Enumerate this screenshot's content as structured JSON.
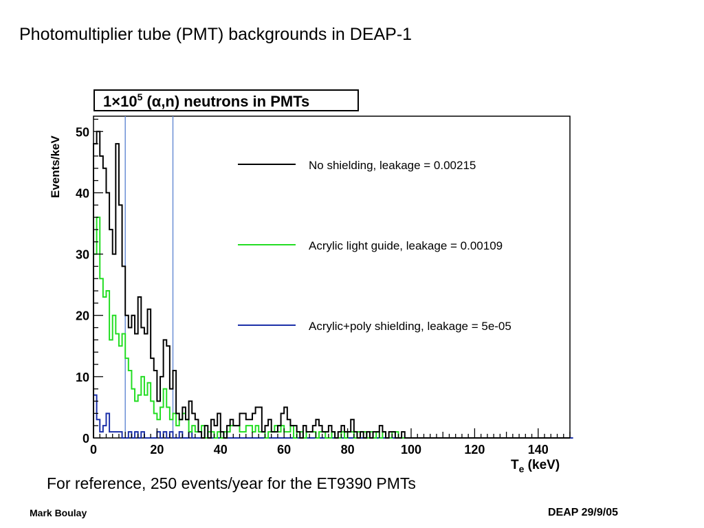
{
  "slide": {
    "title": "Photomultiplier tube (PMT) backgrounds in DEAP-1",
    "footnote": "For reference, 250 events/year for the ET9390 PMTs",
    "author": "Mark Boulay",
    "date": "DEAP 29/9/05"
  },
  "chart_data": {
    "type": "line",
    "title": "1×10^5 (α,n) neutrons in PMTs",
    "title_parts": {
      "mantissa": "1×10",
      "exponent": "5",
      "rest": " (α,n) neutrons in PMTs"
    },
    "xlabel": "T",
    "xlabel_parts": {
      "symbol": "T",
      "subscript": "e",
      "unit": " (keV)"
    },
    "ylabel": "Events/keV",
    "xlim": [
      0,
      150
    ],
    "ylim": [
      0,
      52.5
    ],
    "xticks": [
      0,
      20,
      40,
      60,
      80,
      100,
      120,
      140
    ],
    "yticks": [
      0,
      10,
      20,
      30,
      40,
      50
    ],
    "bin_width": 1,
    "cut_lines": [
      10,
      25
    ],
    "legend_position": "right",
    "series": [
      {
        "name": "No shielding, leakage = 0.00215",
        "color": "#000000",
        "values": [
          48,
          50,
          46,
          44,
          40,
          34,
          30,
          48,
          38,
          28,
          20,
          18,
          20,
          17,
          23,
          18,
          17,
          21,
          13,
          11,
          6,
          10,
          16,
          15,
          8,
          11,
          4,
          3,
          5,
          3,
          6,
          4,
          3,
          1,
          0,
          2,
          0,
          3,
          2,
          4,
          1,
          0,
          2,
          3,
          2,
          2,
          4,
          4,
          3,
          3,
          4,
          5,
          5,
          1,
          2,
          3,
          1,
          1,
          2,
          4,
          5,
          3,
          2,
          2,
          1,
          0,
          2,
          1,
          1,
          2,
          3,
          2,
          1,
          1,
          2,
          1,
          0,
          1,
          2,
          1,
          1,
          3,
          1,
          0,
          1,
          0,
          1,
          0,
          1,
          1,
          2,
          1,
          0,
          1,
          1,
          0,
          0,
          1,
          0,
          0,
          0,
          0,
          0,
          0,
          0,
          0,
          0,
          0,
          0,
          0,
          0,
          0,
          0,
          0,
          0,
          0,
          0,
          0,
          0,
          0,
          0,
          0,
          0,
          0,
          0,
          0,
          0,
          0,
          0,
          0,
          0,
          0,
          0,
          0,
          0,
          0,
          0,
          0,
          0,
          0,
          0,
          0,
          0,
          0,
          0,
          0,
          0,
          0,
          0,
          0
        ]
      },
      {
        "name": "Acrylic light guide, leakage = 0.00109",
        "color": "#22dd22",
        "values": [
          30,
          36,
          26,
          23,
          24,
          16,
          20,
          17,
          15,
          17,
          13,
          11,
          8,
          6,
          7,
          10,
          7,
          9,
          6,
          4,
          3,
          5,
          8,
          5,
          3,
          4,
          2,
          3,
          4,
          3,
          1,
          2,
          1,
          1,
          2,
          0,
          1,
          1,
          0,
          1,
          0,
          1,
          1,
          2,
          2,
          2,
          1,
          1,
          2,
          2,
          1,
          2,
          1,
          1,
          0,
          1,
          1,
          2,
          1,
          2,
          1,
          1,
          2,
          0,
          1,
          1,
          0,
          1,
          1,
          1,
          0,
          1,
          1,
          0,
          0,
          1,
          0,
          0,
          1,
          0,
          1,
          1,
          0,
          1,
          1,
          1,
          0,
          1,
          0,
          1,
          0,
          1,
          0,
          0,
          1,
          1,
          0,
          0,
          0,
          0,
          0,
          0,
          0,
          0,
          0,
          0,
          0,
          0,
          0,
          0,
          0,
          0,
          0,
          0,
          0,
          0,
          0,
          0,
          0,
          0,
          0,
          0,
          0,
          0,
          0,
          0,
          0,
          0,
          0,
          0,
          0,
          0,
          0,
          0,
          0,
          0,
          0,
          0,
          0,
          0,
          0,
          0,
          0,
          0,
          0,
          0,
          0,
          0,
          0,
          0
        ]
      },
      {
        "name": "Acrylic+poly shielding, leakage = 5e-05",
        "color": "#1a2fa8",
        "values": [
          7,
          3,
          1,
          2,
          4,
          1,
          1,
          1,
          1,
          0,
          0,
          1,
          0,
          1,
          0,
          1,
          0,
          0,
          0,
          0,
          1,
          0,
          1,
          0,
          1,
          0,
          0,
          1,
          0,
          0,
          1,
          0,
          0,
          0,
          0,
          0,
          0,
          0,
          0,
          0,
          0,
          0,
          0,
          0,
          0,
          0,
          0,
          0,
          0,
          0,
          0,
          0,
          0,
          0,
          0,
          0,
          0,
          0,
          0,
          0,
          0,
          0,
          0,
          0,
          0,
          0,
          0,
          0,
          0,
          0,
          0,
          0,
          0,
          0,
          0,
          0,
          0,
          0,
          0,
          0,
          0,
          0,
          0,
          0,
          0,
          0,
          0,
          0,
          0,
          0,
          0,
          0,
          0,
          0,
          0,
          0,
          0,
          0,
          0,
          0,
          0,
          0,
          0,
          0,
          0,
          0,
          0,
          0,
          0,
          0,
          0,
          0,
          0,
          0,
          0,
          0,
          0,
          0,
          0,
          0,
          0,
          0,
          0,
          0,
          0,
          0,
          0,
          0,
          0,
          0,
          0,
          0,
          0,
          0,
          0,
          0,
          0,
          0,
          0,
          0,
          0,
          0,
          0,
          0,
          0,
          0,
          0,
          0,
          0,
          0,
          0
        ]
      }
    ],
    "colors": {
      "cut_line": "#6a8fd6",
      "frame": "#000000"
    }
  }
}
